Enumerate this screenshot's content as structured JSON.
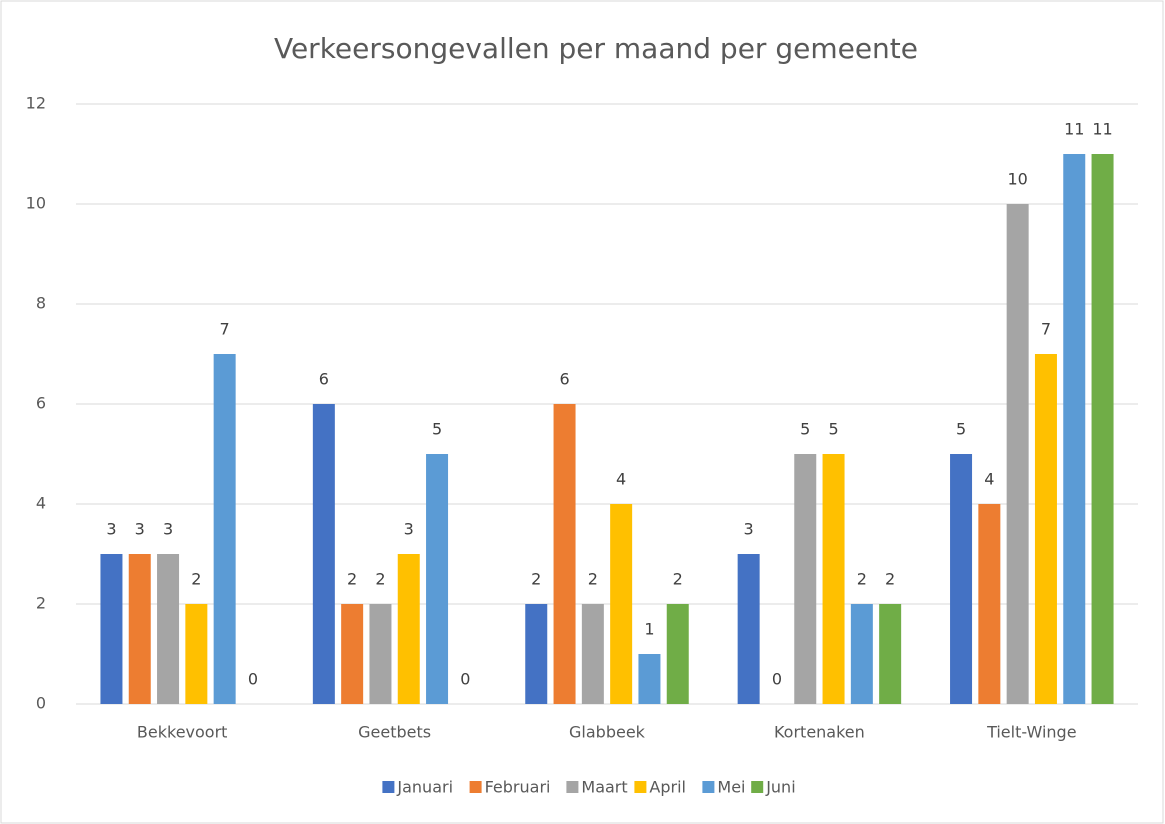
{
  "chart_data": {
    "type": "bar",
    "title": "Verkeersongevallen per maand per gemeente",
    "categories": [
      "Bekkevoort",
      "Geetbets",
      "Glabbeek",
      "Kortenaken",
      "Tielt-Winge"
    ],
    "series": [
      {
        "name": "Januari",
        "color": "#4472c4",
        "values": [
          3,
          6,
          2,
          3,
          5
        ]
      },
      {
        "name": "Februari",
        "color": "#ed7d31",
        "values": [
          3,
          2,
          6,
          0,
          4
        ]
      },
      {
        "name": "Maart",
        "color": "#a5a5a5",
        "values": [
          3,
          2,
          2,
          5,
          10
        ]
      },
      {
        "name": "April",
        "color": "#ffc000",
        "values": [
          2,
          3,
          4,
          5,
          7
        ]
      },
      {
        "name": "Mei",
        "color": "#5b9bd5",
        "values": [
          7,
          5,
          1,
          2,
          11
        ]
      },
      {
        "name": "Juni",
        "color": "#70ad47",
        "values": [
          0,
          0,
          2,
          2,
          11
        ]
      }
    ],
    "ylim": [
      0,
      12
    ],
    "yticks": [
      0,
      2,
      4,
      6,
      8,
      10,
      12
    ],
    "grid": true,
    "legend": "bottom"
  }
}
